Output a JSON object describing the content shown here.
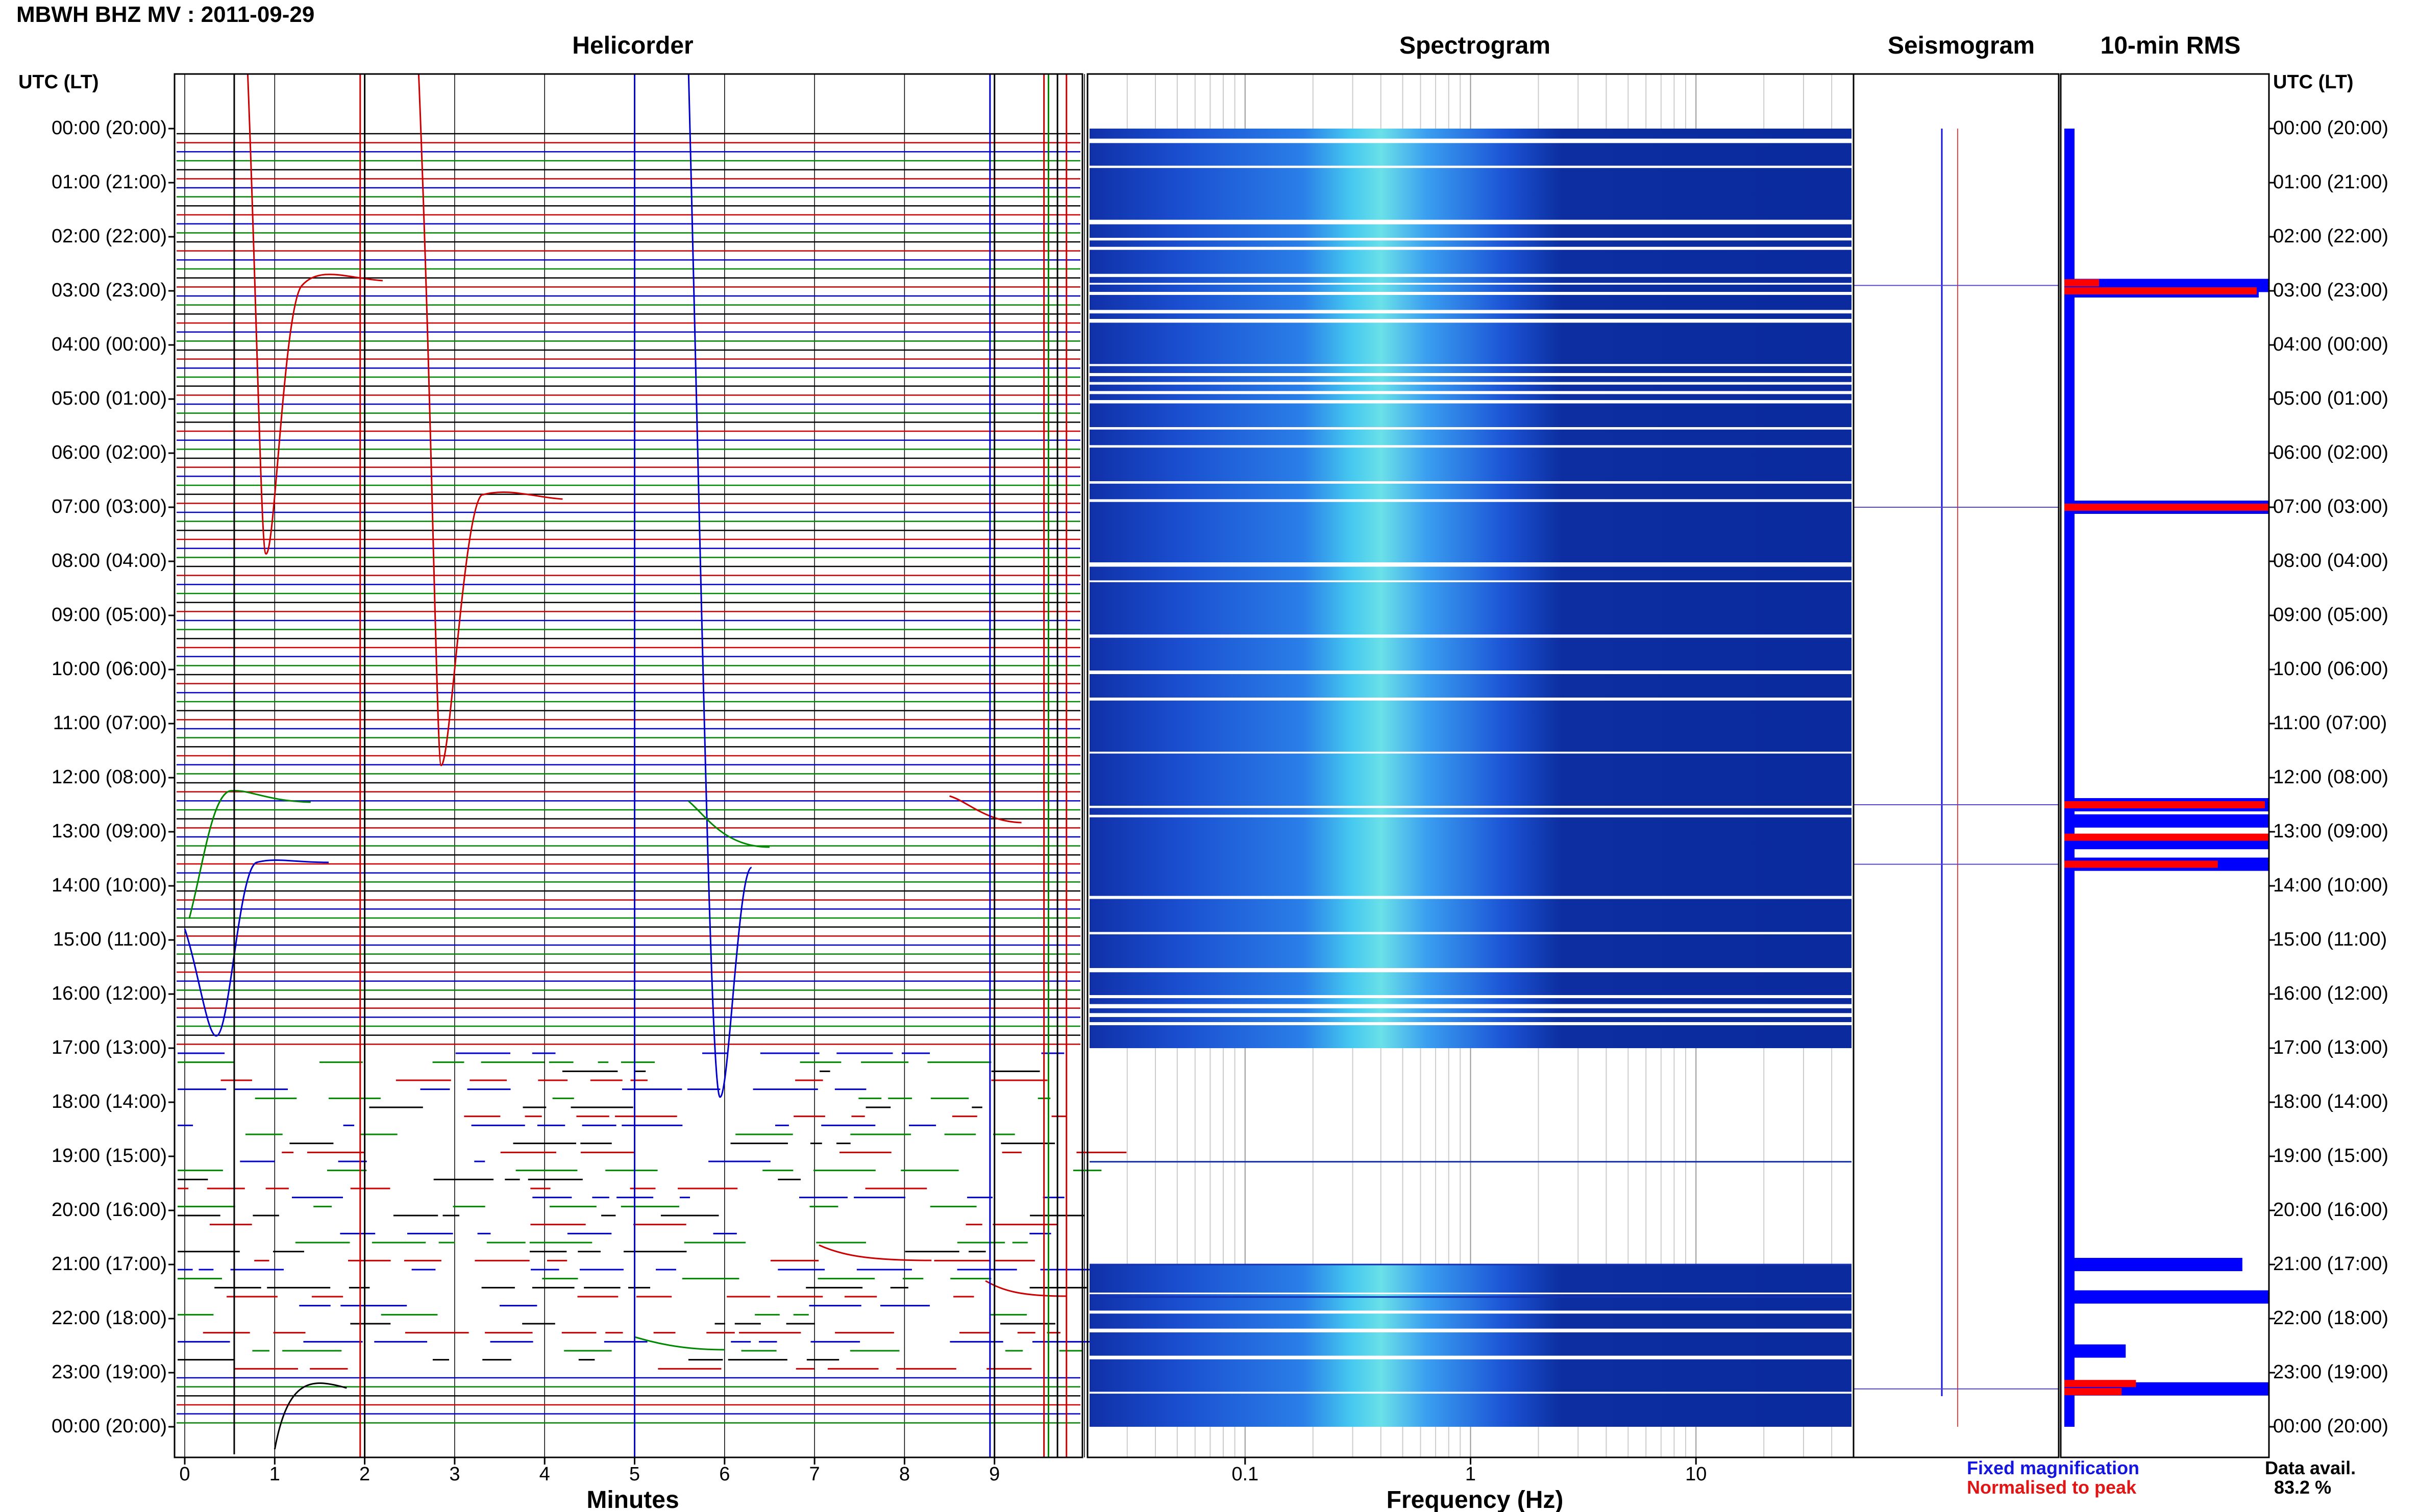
{
  "station_title": "MBWH BHZ MV : 2011-09-29",
  "panel_titles": {
    "helicorder": "Helicorder",
    "spectrogram": "Spectrogram",
    "seismogram": "Seismogram",
    "rms": "10-min RMS"
  },
  "axis_header_left": "UTC (LT)",
  "axis_header_right": "UTC (LT)",
  "legend": {
    "fixed": "Fixed magnification",
    "normalised": "Normalised to peak"
  },
  "data_avail_label": "Data avail.",
  "data_avail_value": "83.2 %",
  "colors": {
    "helicorder_traces": [
      "#000000",
      "#cc0000",
      "#0000cc",
      "#008800"
    ],
    "spectrogram_background": "#0a2a9e",
    "spectrogram_energy": "#35c8ff",
    "rms_fixed": "#0000ff",
    "rms_normalised": "#ff0000"
  },
  "chart_data": [
    {
      "type": "line",
      "panel": "Helicorder",
      "xlabel": "Minutes",
      "x_ticks": [
        "0",
        "1",
        "2",
        "3",
        "4",
        "5",
        "6",
        "7",
        "8",
        "9"
      ],
      "xlim": [
        0,
        10
      ],
      "ylabel": "UTC (LT)",
      "y_ticks": [
        "00:00 (20:00)",
        "01:00 (21:00)",
        "02:00 (22:00)",
        "03:00 (23:00)",
        "04:00 (00:00)",
        "05:00 (01:00)",
        "06:00 (02:00)",
        "07:00 (03:00)",
        "08:00 (04:00)",
        "09:00 (05:00)",
        "10:00 (06:00)",
        "11:00 (07:00)",
        "12:00 (08:00)",
        "13:00 (09:00)",
        "14:00 (10:00)",
        "15:00 (11:00)",
        "16:00 (12:00)",
        "17:00 (13:00)",
        "18:00 (14:00)",
        "19:00 (15:00)",
        "20:00 (16:00)",
        "21:00 (17:00)",
        "22:00 (18:00)",
        "23:00 (19:00)",
        "00:00 (20:00)"
      ],
      "traces_per_hour": 6,
      "data_gap_hours": [
        17,
        23
      ]
    },
    {
      "type": "heatmap",
      "panel": "Spectrogram",
      "xlabel": "Frequency (Hz)",
      "x_scale": "log",
      "x_ticks": [
        "0.1",
        "1",
        "10"
      ],
      "xlim": [
        0.02,
        50
      ],
      "energy_peak_hz": 0.4,
      "data_hours": [
        [
          0,
          17
        ],
        [
          21,
          24
        ]
      ]
    },
    {
      "type": "line",
      "panel": "Seismogram",
      "xlabel": "",
      "ylabel": ""
    },
    {
      "type": "bar",
      "panel": "10-min RMS",
      "orientation": "horizontal",
      "series": [
        {
          "name": "Fixed magnification",
          "events": [
            {
              "hour": 2.9,
              "value": 1.0
            },
            {
              "hour": 3.0,
              "value": 0.95
            },
            {
              "hour": 7.0,
              "value": 1.0
            },
            {
              "hour": 12.5,
              "value": 1.0
            },
            {
              "hour": 12.8,
              "value": 1.0
            },
            {
              "hour": 13.2,
              "value": 1.0
            },
            {
              "hour": 13.6,
              "value": 1.0
            },
            {
              "hour": 21.0,
              "value": 0.87
            },
            {
              "hour": 21.6,
              "value": 1.0
            },
            {
              "hour": 22.6,
              "value": 0.3
            },
            {
              "hour": 23.3,
              "value": 1.0
            }
          ]
        },
        {
          "name": "Normalised to peak",
          "events": [
            {
              "hour": 2.85,
              "value": 0.17
            },
            {
              "hour": 3.0,
              "value": 0.94
            },
            {
              "hour": 7.0,
              "value": 1.0
            },
            {
              "hour": 12.5,
              "value": 0.98
            },
            {
              "hour": 13.1,
              "value": 1.0
            },
            {
              "hour": 13.6,
              "value": 0.75
            },
            {
              "hour": 23.2,
              "value": 0.35
            },
            {
              "hour": 23.35,
              "value": 0.28
            }
          ]
        }
      ]
    }
  ]
}
